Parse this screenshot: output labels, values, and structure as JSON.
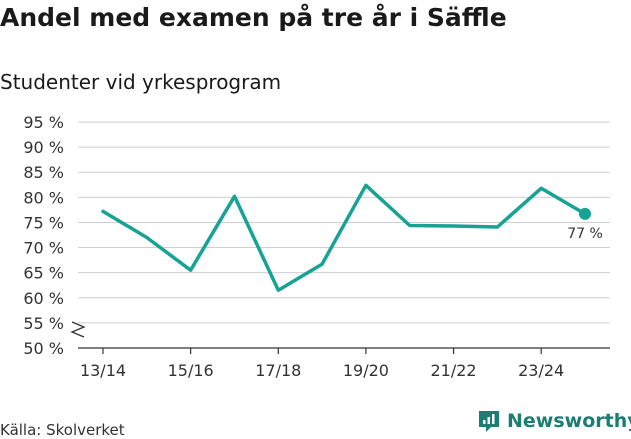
{
  "title": "Andel med examen på tre år i Säffle",
  "subtitle": "Studenter vid yrkesprogram",
  "source": "Källa: Skolverket",
  "brand": {
    "name": "Newsworthy",
    "icon": "newsworthy-logo-icon"
  },
  "colors": {
    "line": "#16a394",
    "brand": "#1a7e73",
    "grid": "#cfcfcf",
    "axis": "#333333"
  },
  "chart_data": {
    "type": "line",
    "title": "Andel med examen på tre år i Säffle",
    "subtitle": "Studenter vid yrkesprogram",
    "xlabel": "",
    "ylabel": "",
    "ylim": [
      50,
      95
    ],
    "y_ticks": [
      50,
      55,
      60,
      65,
      70,
      75,
      80,
      85,
      90,
      95
    ],
    "y_tick_labels": [
      "50 %",
      "55 %",
      "60 %",
      "65 %",
      "70 %",
      "75 %",
      "80 %",
      "85 %",
      "90 %",
      "95 %"
    ],
    "axis_break": true,
    "x": [
      "13/14",
      "14/15",
      "15/16",
      "16/17",
      "17/18",
      "18/19",
      "19/20",
      "20/21",
      "21/22",
      "22/23",
      "23/24",
      "24/25"
    ],
    "x_tick_labels": [
      "13/14",
      "15/16",
      "17/18",
      "19/20",
      "21/22",
      "23/24"
    ],
    "series": [
      {
        "name": "Andel med examen",
        "values": [
          77.2,
          72.0,
          65.5,
          80.2,
          61.5,
          66.7,
          82.4,
          74.4,
          74.3,
          74.1,
          81.8,
          76.7
        ]
      }
    ],
    "last_point_label": "77 %",
    "grid": true
  }
}
